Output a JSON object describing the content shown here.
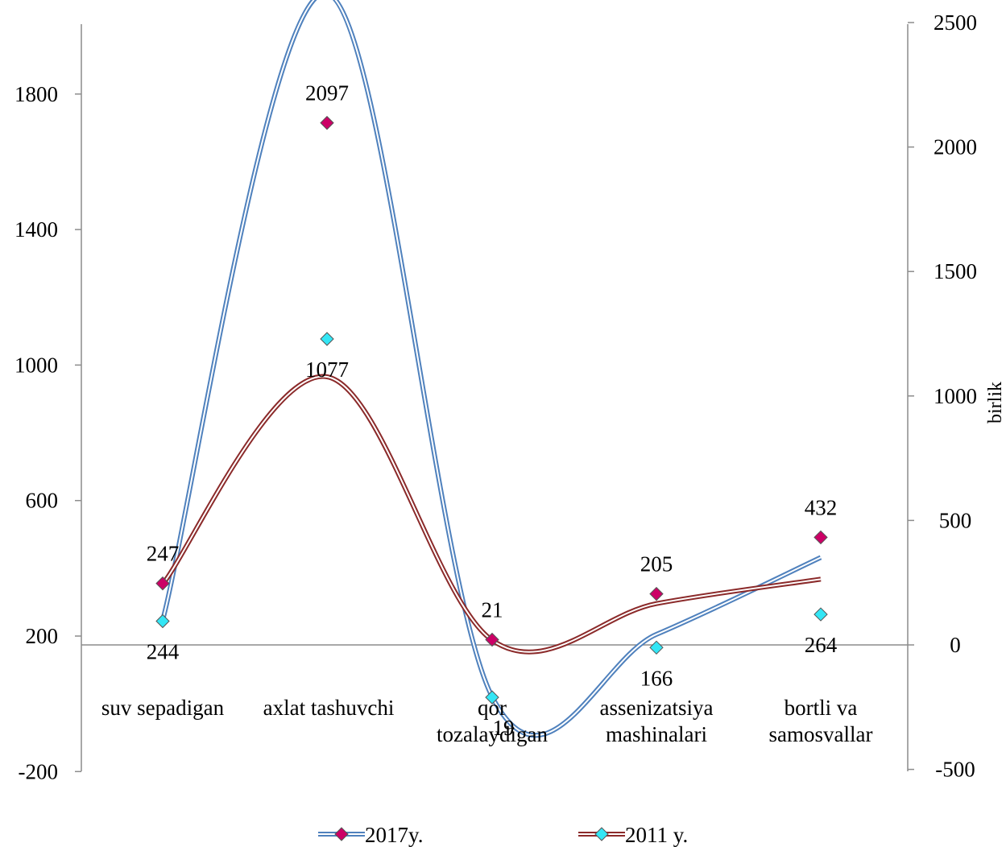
{
  "chart_data": {
    "type": "line",
    "smooth": true,
    "categories": [
      [
        "suv sepadigan"
      ],
      [
        "axlat tashuvchi"
      ],
      [
        "qor",
        "tozalaydigan"
      ],
      [
        "assenizatsiya",
        "mashinalari"
      ],
      [
        "bortli va",
        "samosvallar"
      ]
    ],
    "y_left": {
      "ticks": [
        -200,
        200,
        600,
        1000,
        1400,
        1800
      ],
      "tick_labels": [
        "-200",
        "200",
        "600",
        "1000",
        "1400",
        "1800"
      ],
      "range": [
        -200,
        2000
      ]
    },
    "y_right": {
      "label": "birlik",
      "ticks": [
        -500,
        0,
        500,
        1000,
        1500,
        2000,
        2500
      ],
      "tick_labels": [
        "-500",
        "0",
        "500",
        "1000",
        "1500",
        "2000",
        "2500"
      ],
      "range": [
        -500,
        2500
      ]
    },
    "series": [
      {
        "name": "2017y.",
        "values": [
          247,
          2097,
          21,
          205,
          432
        ],
        "labels": [
          "247",
          "2097",
          "21",
          "205",
          "432"
        ],
        "line_color": "#4f81bd",
        "marker_color": "#cc0066",
        "label_position": "above"
      },
      {
        "name": "2011 y.",
        "values": [
          244,
          1077,
          19,
          166,
          264
        ],
        "labels": [
          "244",
          "1077",
          "19",
          "166",
          "264"
        ],
        "line_color": "#8b2a2a",
        "marker_color": "#33e6f5",
        "label_position": "below"
      }
    ],
    "legend": "bottom",
    "grid": false
  }
}
